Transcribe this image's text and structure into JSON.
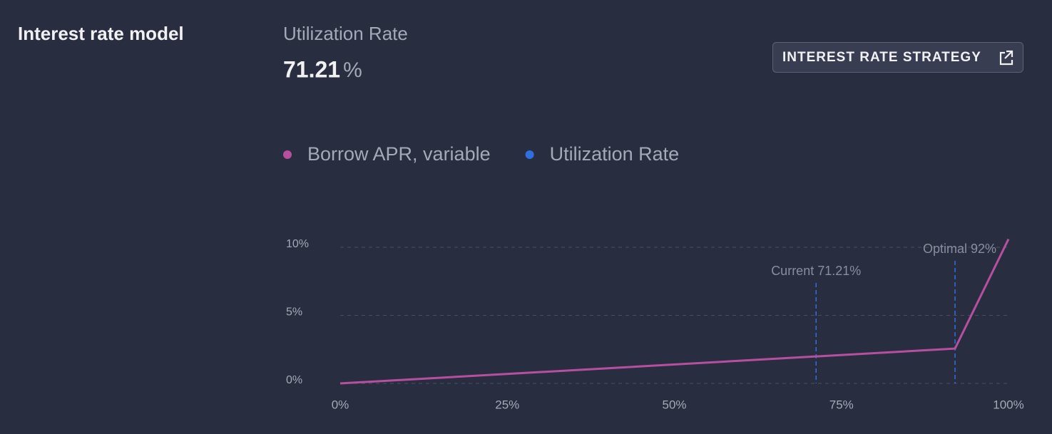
{
  "section_title": "Interest rate model",
  "utilization": {
    "label": "Utilization Rate",
    "value": 71.21,
    "unit": "%"
  },
  "button": {
    "label": "INTEREST RATE STRATEGY"
  },
  "chart_data": {
    "type": "line",
    "series": [
      {
        "name": "Borrow APR, variable",
        "color": "#b6509e",
        "x": [
          0,
          92,
          100
        ],
        "values": [
          0,
          2.56,
          10.6
        ]
      },
      {
        "name": "Utilization Rate",
        "color": "#2f6fe0",
        "x": [
          71.21,
          92
        ],
        "labels": [
          "Current 71.21%",
          "Optimal 92%"
        ]
      }
    ],
    "xlim": [
      0,
      100
    ],
    "xticks": [
      {
        "value": 0,
        "label": "0%"
      },
      {
        "value": 25,
        "label": "25%"
      },
      {
        "value": 50,
        "label": "50%"
      },
      {
        "value": 75,
        "label": "75%"
      },
      {
        "value": 100,
        "label": "100%"
      }
    ],
    "ylim": [
      0,
      10
    ],
    "yticks": [
      {
        "value": 0,
        "label": "0%"
      },
      {
        "value": 5,
        "label": "5%"
      },
      {
        "value": 10,
        "label": "10%"
      }
    ],
    "grid": true
  }
}
